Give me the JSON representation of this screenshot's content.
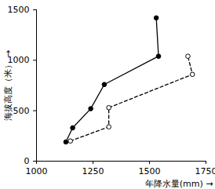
{
  "chart_data": {
    "type": "line",
    "xlabel": "年降水量(mm)",
    "ylabel": "海拔高度（米）",
    "xlim": [
      1000,
      1750
    ],
    "xticks": [
      1000,
      1250,
      1500,
      1750
    ],
    "ylim": [
      0,
      1500
    ],
    "yticks": [
      0,
      500,
      1000,
      1500
    ],
    "grid": false,
    "series": [
      {
        "color": "#000000",
        "marker": "filled_circle",
        "line_style": "solid",
        "x": [
          1130,
          1160,
          1240,
          1300,
          1540,
          1530
        ],
        "values": [
          190,
          330,
          520,
          760,
          1040,
          1420
        ]
      },
      {
        "color": "#000000",
        "marker": "open_circle",
        "line_style": "dashed",
        "x": [
          1150,
          1320,
          1320,
          1690,
          1670
        ],
        "values": [
          200,
          340,
          530,
          860,
          1040
        ]
      }
    ]
  }
}
